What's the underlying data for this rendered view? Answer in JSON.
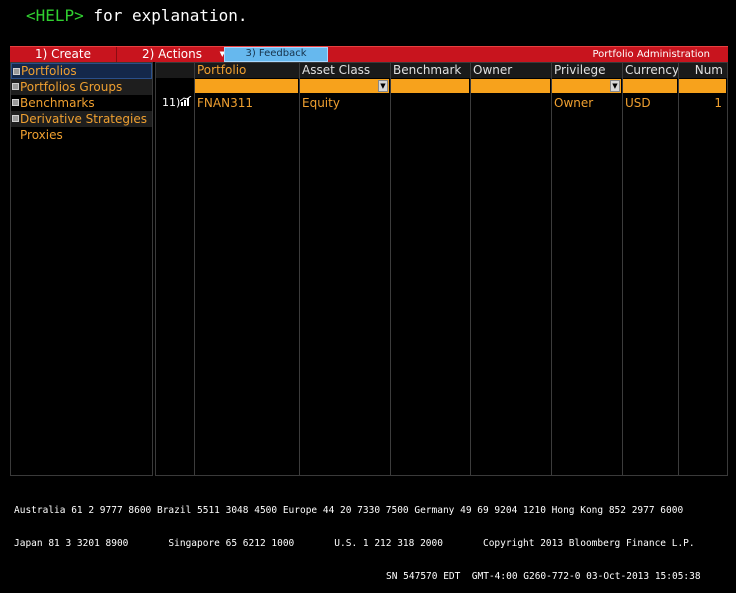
{
  "help": {
    "key": "<HELP>",
    "text": " for explanation."
  },
  "menubar": {
    "create_label": "1) Create",
    "actions_label": "2) Actions",
    "feedback_label": "3) Feedback",
    "title": "Portfolio Administration",
    "bar_color": "#c8141e",
    "feedback_color": "#66b8ee"
  },
  "sidebar": {
    "items": [
      {
        "label": "Portfolios"
      },
      {
        "label": "Portfolios Groups"
      },
      {
        "label": "Benchmarks"
      },
      {
        "label": "Derivative Strategies"
      },
      {
        "label": "Proxies"
      }
    ]
  },
  "grid": {
    "columns": [
      "Portfolio",
      "Asset Class",
      "Benchmark",
      "Owner",
      "Privilege",
      "Currency",
      "Num"
    ],
    "filter_color": "#f7a21c",
    "rows": [
      {
        "row_number": "11)",
        "icon": "chart-icon",
        "portfolio": "FNAN311",
        "asset_class": "Equity",
        "benchmark": "",
        "owner": "",
        "privilege": "Owner",
        "currency": "USD",
        "num": "1"
      }
    ]
  },
  "footer": {
    "line1": "Australia 61 2 9777 8600 Brazil 5511 3048 4500 Europe 44 20 7330 7500 Germany 49 69 9204 1210 Hong Kong 852 2977 6000",
    "line2": "Japan 81 3 3201 8900       Singapore 65 6212 1000       U.S. 1 212 318 2000       Copyright 2013 Bloomberg Finance L.P.",
    "line3": "SN 547570 EDT  GMT-4:00 G260-772-0 03-Oct-2013 15:05:38"
  }
}
